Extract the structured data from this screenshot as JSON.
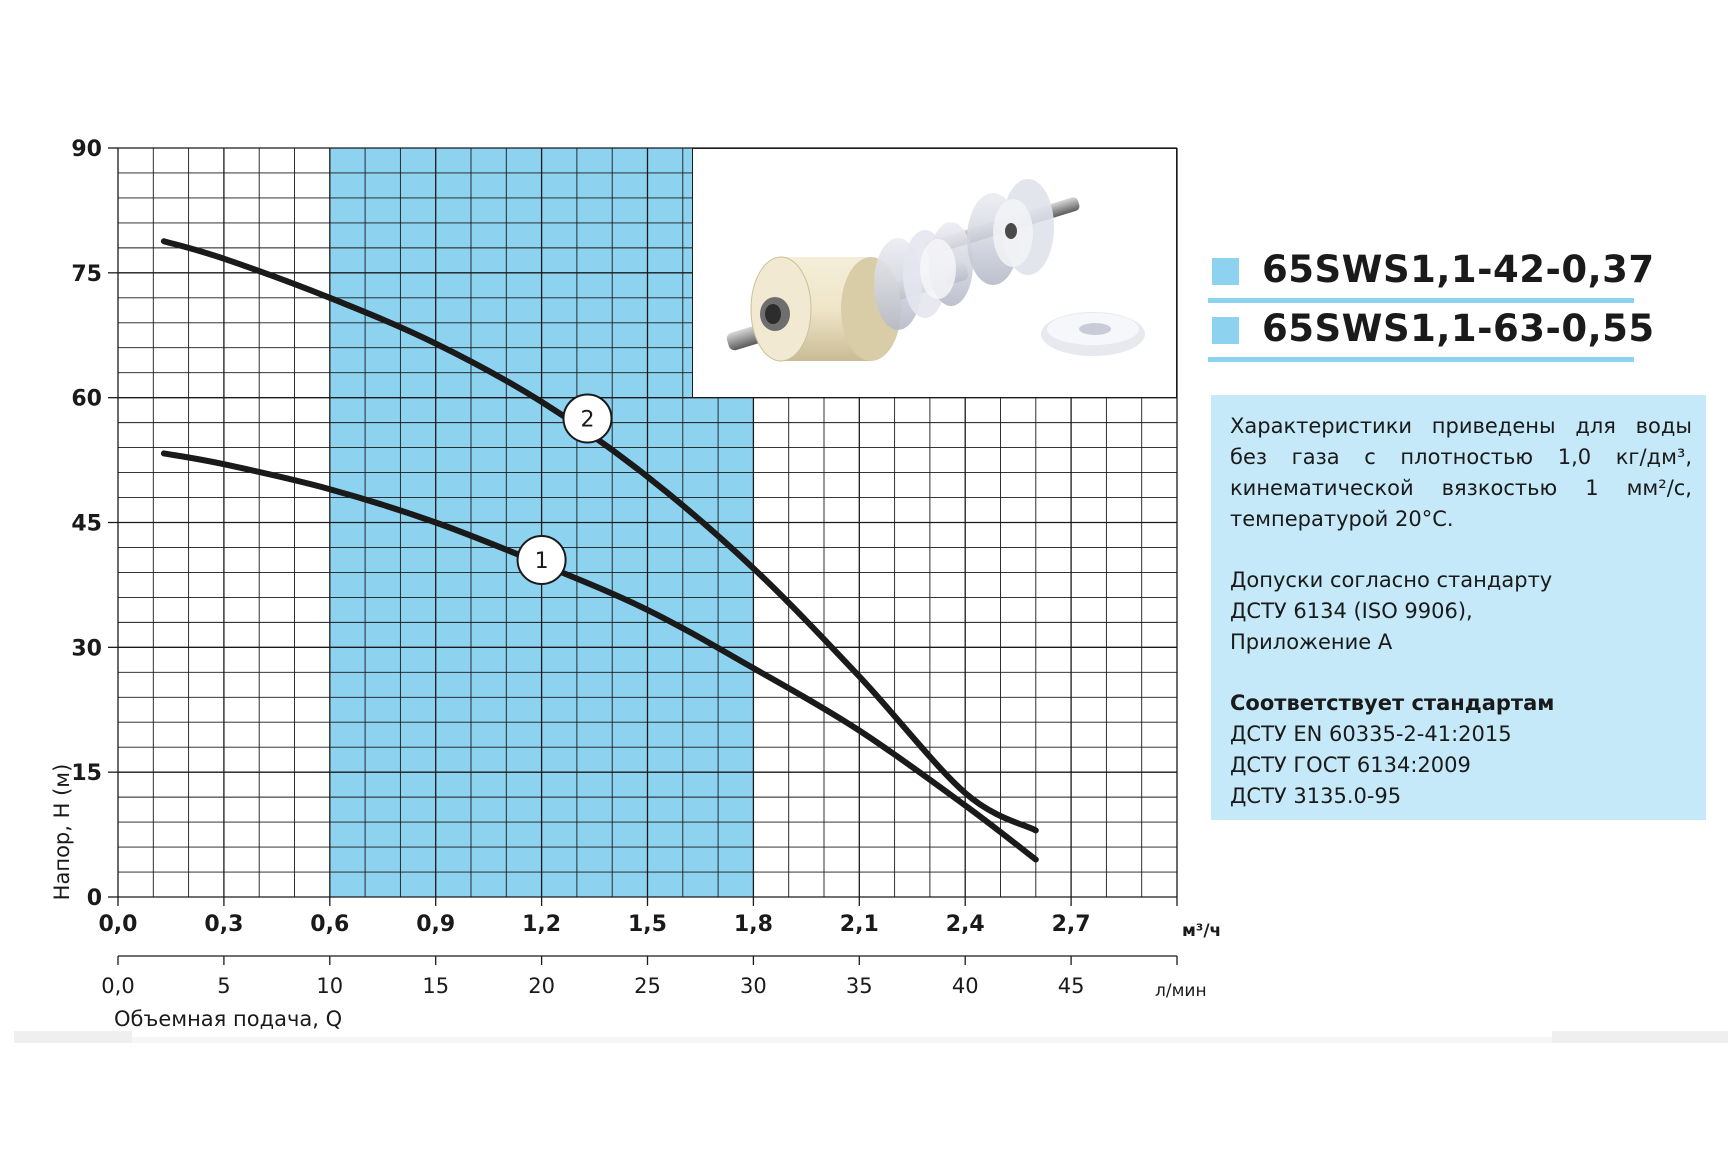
{
  "chart_data": {
    "type": "line",
    "xlabel": "Объемная подача, Q",
    "ylabel": "Напор, H (м)",
    "x_unit_primary": "м³/ч",
    "x_unit_secondary": "л/мин",
    "xlim": [
      0,
      3.0
    ],
    "ylim": [
      0,
      90
    ],
    "x_ticks_primary": [
      "0,0",
      "0,3",
      "0,6",
      "0,9",
      "1,2",
      "1,5",
      "1,8",
      "2,1",
      "2,4",
      "2,7"
    ],
    "x_ticks_primary_values": [
      0,
      0.3,
      0.6,
      0.9,
      1.2,
      1.5,
      1.8,
      2.1,
      2.4,
      2.7
    ],
    "x_ticks_secondary": [
      "0,0",
      "5",
      "10",
      "15",
      "20",
      "25",
      "30",
      "35",
      "40",
      "45"
    ],
    "y_ticks": [
      "0",
      "15",
      "30",
      "45",
      "60",
      "75",
      "90"
    ],
    "y_ticks_values": [
      0,
      15,
      30,
      45,
      60,
      75,
      90
    ],
    "grid": true,
    "shaded_range": [
      0.6,
      1.8
    ],
    "shade_color": "#8dd3f0",
    "series": [
      {
        "id": "1",
        "marker_label": "1",
        "marker_at": [
          1.2,
          40.5
        ],
        "x": [
          0.13,
          0.3,
          0.6,
          0.9,
          1.2,
          1.5,
          1.8,
          2.1,
          2.4,
          2.6
        ],
        "y": [
          53.3,
          52.0,
          49.0,
          45.0,
          40.0,
          34.5,
          27.5,
          20.0,
          11.0,
          4.5
        ]
      },
      {
        "id": "2",
        "marker_label": "2",
        "marker_at": [
          1.33,
          57.5
        ],
        "x": [
          0.13,
          0.3,
          0.6,
          0.9,
          1.2,
          1.5,
          1.8,
          2.1,
          2.4,
          2.6
        ],
        "y": [
          78.8,
          76.7,
          72.0,
          66.5,
          59.5,
          50.5,
          39.5,
          26.5,
          12.5,
          8.0
        ]
      }
    ]
  },
  "legend": {
    "items": [
      {
        "label": "65SWS1,1-42-0,37",
        "color": "#8dd3f0"
      },
      {
        "label": "65SWS1,1-63-0,55",
        "color": "#8dd3f0"
      }
    ]
  },
  "info": {
    "para1": "Характеристики приведены для воды без газа с плотностью 1,0 кг/дм³, кинематической вязкостью 1 мм²/с, температурой 20°C.",
    "para2_lines": [
      "Допуски согласно стандарту",
      "ДСТУ 6134 (ISO 9906),",
      "Приложение А"
    ],
    "para3_heading": "Соответствует стандартам",
    "para3_lines": [
      "ДСТУ EN 60335-2-41:2015",
      "ДСТУ ГОСТ 6134:2009",
      "ДСТУ 3135.0-95"
    ]
  },
  "photo": {
    "icon": "pump-impeller-assembly-icon"
  }
}
